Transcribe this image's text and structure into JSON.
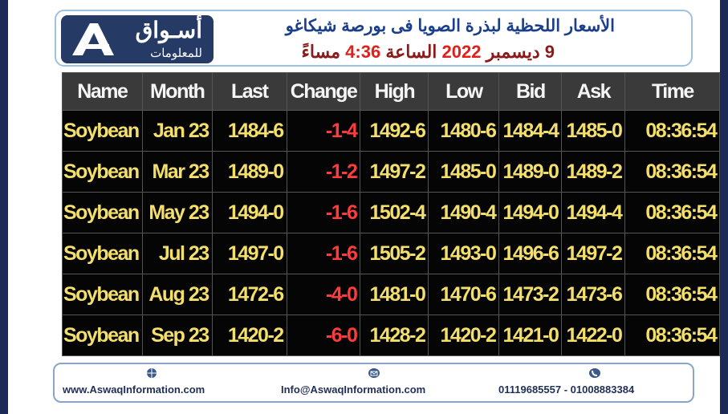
{
  "header": {
    "logo_top": "أسـواق",
    "logo_bottom": "للمعلومات",
    "title": "الأسعار اللحظية لبذرة الصويا فى بورصة شيكاغو",
    "subtitle_parts": [
      "9 ديسمبر",
      "2022",
      "الساعة",
      "4:36",
      "مساءً"
    ]
  },
  "table": {
    "columns": [
      "Name",
      "Month",
      "Last",
      "Change",
      "High",
      "Low",
      "Bid",
      "Ask",
      "Time"
    ],
    "rows": [
      [
        "Soybean",
        "Jan 23",
        "1484-6",
        "-1-4",
        "1492-6",
        "1480-6",
        "1484-4",
        "1485-0",
        "08:36:54"
      ],
      [
        "Soybean",
        "Mar 23",
        "1489-0",
        "-1-2",
        "1497-2",
        "1485-0",
        "1489-0",
        "1489-2",
        "08:36:54"
      ],
      [
        "Soybean",
        "May 23",
        "1494-0",
        "-1-6",
        "1502-4",
        "1490-4",
        "1494-0",
        "1494-4",
        "08:36:54"
      ],
      [
        "Soybean",
        "Jul 23",
        "1497-0",
        "-1-6",
        "1505-2",
        "1493-0",
        "1496-6",
        "1497-2",
        "08:36:54"
      ],
      [
        "Soybean",
        "Aug 23",
        "1472-6",
        "-4-0",
        "1481-0",
        "1470-6",
        "1473-2",
        "1473-6",
        "08:36:54"
      ],
      [
        "Soybean",
        "Sep 23",
        "1420-2",
        "-6-0",
        "1428-2",
        "1420-2",
        "1421-0",
        "1422-0",
        "08:36:54"
      ]
    ]
  },
  "footer": {
    "website": "www.AswaqInformation.com",
    "email": "Info@AswaqInformation.com",
    "phone": "01119685557 - 01008883384"
  }
}
